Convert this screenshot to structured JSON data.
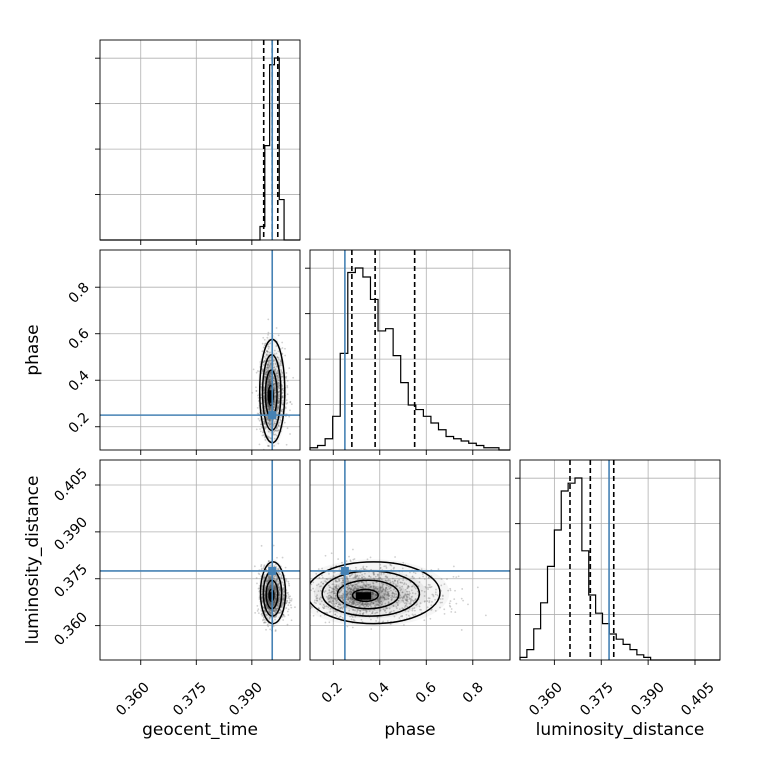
{
  "colors": {
    "truth": "#4682b4",
    "hist": "#000000",
    "grid": "#b0b0b0",
    "points": "#777777"
  },
  "chart_data": {
    "type": "corner",
    "parameters": [
      {
        "name": "geocent_time",
        "label": "geocent_time",
        "range": [
          0.349,
          0.403
        ],
        "ticks": [
          0.36,
          0.375,
          0.39
        ],
        "tick_labels": [
          "0.360",
          "0.375",
          "0.390"
        ],
        "truth": 0.3955,
        "quantiles": [
          0.3932,
          0.3955,
          0.397
        ],
        "hist_bins": [
          0.3935,
          0.3948,
          0.3961,
          0.3974,
          0.3987,
          0.4
        ],
        "hist_edges_start": 0.3896,
        "hist_bin_width": 0.0013,
        "hist_counts": [
          0,
          0,
          2,
          14,
          26,
          27,
          6,
          0
        ]
      },
      {
        "name": "phase",
        "label": "phase",
        "range": [
          0.1,
          0.96
        ],
        "ticks": [
          0.2,
          0.4,
          0.6,
          0.8
        ],
        "tick_labels": [
          "0.2",
          "0.4",
          "0.6",
          "0.8"
        ],
        "truth": 0.25,
        "quantiles": [
          0.28,
          0.38,
          0.55
        ],
        "hist_edges_start": 0.1,
        "hist_bin_width": 0.0325,
        "hist_counts": [
          1,
          2,
          5,
          15,
          43,
          79,
          81,
          77,
          67,
          53,
          54,
          42,
          30,
          20,
          18,
          15,
          12,
          9,
          6,
          5,
          4,
          3,
          2,
          1,
          1,
          0
        ]
      },
      {
        "name": "luminosity_distance",
        "label": "luminosity_distance",
        "range": [
          0.349,
          0.413
        ],
        "ticks": [
          0.36,
          0.375,
          0.39,
          0.405
        ],
        "tick_labels": [
          "0.360",
          "0.375",
          "0.390",
          "0.405"
        ],
        "truth": 0.3775,
        "quantiles": [
          0.365,
          0.3715,
          0.379
        ],
        "hist_edges_start": 0.349,
        "hist_bin_width": 0.0022,
        "hist_counts": [
          1,
          4,
          12,
          22,
          36,
          50,
          65,
          68,
          70,
          42,
          25,
          18,
          14,
          10,
          8,
          6,
          4,
          2,
          1,
          0,
          0,
          0,
          0,
          0,
          0,
          0,
          0,
          0,
          0
        ]
      }
    ],
    "density_2d": [
      {
        "x": "geocent_time",
        "y": "phase",
        "peak": [
          0.395,
          0.33
        ],
        "spread": [
          0.0013,
          0.09
        ]
      },
      {
        "x": "geocent_time",
        "y": "luminosity_distance",
        "peak": [
          0.3952,
          0.3695
        ],
        "spread": [
          0.0013,
          0.004
        ]
      },
      {
        "x": "phase",
        "y": "luminosity_distance",
        "peak": [
          0.33,
          0.3695
        ],
        "spread": [
          0.11,
          0.004
        ]
      }
    ]
  }
}
